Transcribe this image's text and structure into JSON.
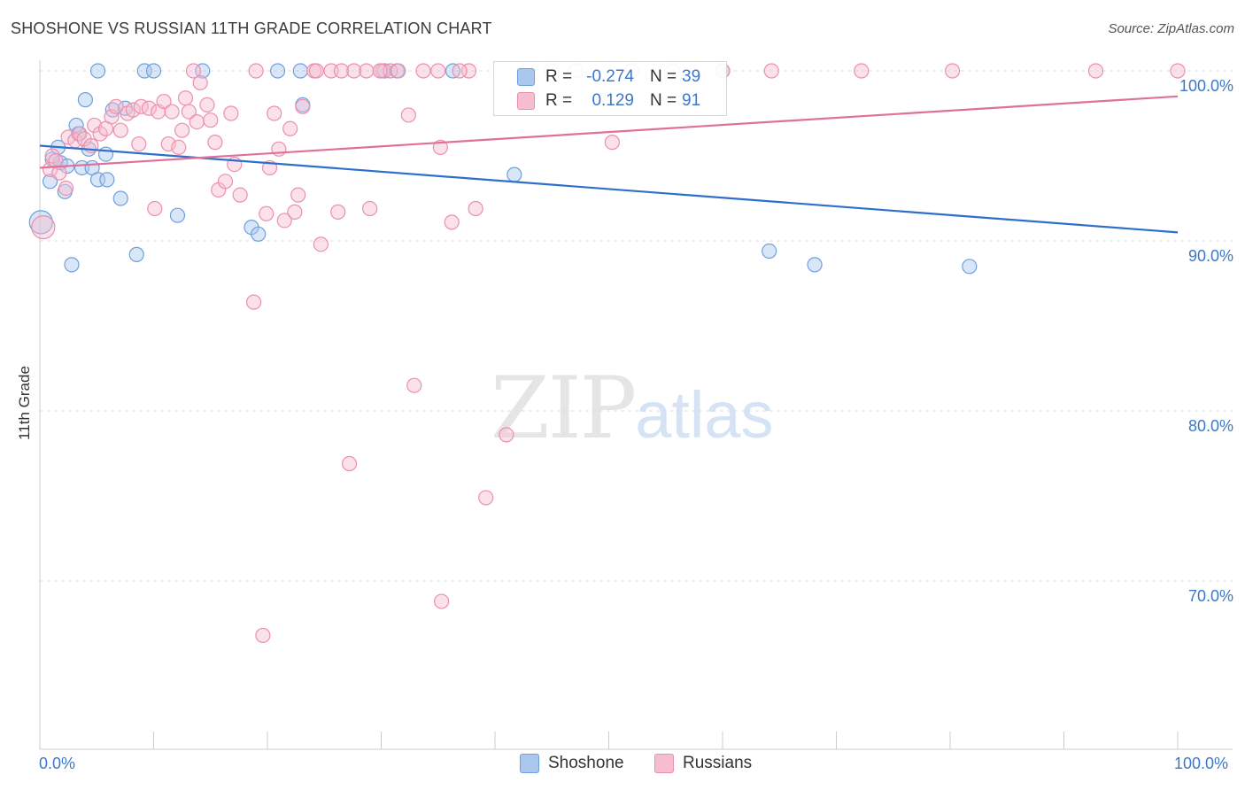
{
  "title": "SHOSHONE VS RUSSIAN 11TH GRADE CORRELATION CHART",
  "source": "Source: ZipAtlas.com",
  "watermark": {
    "zip": "ZIP",
    "atlas": "atlas"
  },
  "legend": [
    {
      "r_label": "R =",
      "r_value": "-0.274",
      "n_label": "N =",
      "n_value": "39"
    },
    {
      "r_label": "R =",
      "r_value": "0.129",
      "n_label": "N =",
      "n_value": "91"
    }
  ],
  "chart_data": {
    "type": "scatter",
    "title": "SHOSHONE VS RUSSIAN 11TH GRADE CORRELATION CHART",
    "xlabel": "",
    "ylabel": "11th Grade",
    "xlim": [
      0,
      100
    ],
    "ylim": [
      60,
      100
    ],
    "x_tick_labels": [
      "0.0%",
      "100.0%"
    ],
    "y_ticks": [
      {
        "value": 100,
        "label": "100.0%"
      },
      {
        "value": 90,
        "label": "90.0%"
      },
      {
        "value": 80,
        "label": "80.0%"
      },
      {
        "value": 70,
        "label": "70.0%"
      }
    ],
    "legend_position": "top-center",
    "grid": true,
    "series": [
      {
        "name": "Shoshone",
        "color": "#6fa0dc",
        "fill": "#aac8ee",
        "trend": {
          "x": [
            0,
            100
          ],
          "y": [
            95.6,
            90.5
          ],
          "color": "#2f6fcc"
        },
        "points": [
          [
            0.1,
            91.1
          ],
          [
            0.9,
            93.5
          ],
          [
            1.1,
            94.8
          ],
          [
            1.6,
            95.5
          ],
          [
            1.8,
            94.6
          ],
          [
            2.2,
            92.9
          ],
          [
            2.4,
            94.4
          ],
          [
            2.8,
            88.6
          ],
          [
            3.2,
            96.8
          ],
          [
            3.4,
            96.3
          ],
          [
            3.7,
            94.3
          ],
          [
            4.0,
            98.3
          ],
          [
            4.3,
            95.4
          ],
          [
            4.6,
            94.3
          ],
          [
            5.1,
            93.6
          ],
          [
            5.1,
            100.0
          ],
          [
            5.8,
            95.1
          ],
          [
            5.9,
            93.6
          ],
          [
            6.4,
            97.7
          ],
          [
            7.1,
            92.5
          ],
          [
            7.5,
            97.8
          ],
          [
            8.5,
            89.2
          ],
          [
            9.2,
            100.0
          ],
          [
            10.0,
            100.0
          ],
          [
            12.1,
            91.5
          ],
          [
            14.3,
            100.0
          ],
          [
            18.6,
            90.8
          ],
          [
            19.2,
            90.4
          ],
          [
            20.9,
            100.0
          ],
          [
            22.9,
            100.0
          ],
          [
            23.1,
            98.0
          ],
          [
            30.3,
            100.0
          ],
          [
            31.4,
            100.0
          ],
          [
            36.3,
            100.0
          ],
          [
            41.7,
            93.9
          ],
          [
            64.1,
            89.4
          ],
          [
            68.1,
            88.6
          ],
          [
            81.7,
            88.5
          ],
          [
            60.0,
            100.0
          ]
        ]
      },
      {
        "name": "Russians",
        "color": "#ec8fae",
        "fill": "#f6bccf",
        "trend": {
          "x": [
            0,
            100
          ],
          "y": [
            94.3,
            98.5
          ],
          "color": "#e0709b"
        },
        "points": [
          [
            0.3,
            90.8
          ],
          [
            0.9,
            94.2
          ],
          [
            1.1,
            95.0
          ],
          [
            1.4,
            94.7
          ],
          [
            1.7,
            94.0
          ],
          [
            2.3,
            93.1
          ],
          [
            2.5,
            96.1
          ],
          [
            3.1,
            95.9
          ],
          [
            3.5,
            96.3
          ],
          [
            3.9,
            96.0
          ],
          [
            4.5,
            95.6
          ],
          [
            4.8,
            96.8
          ],
          [
            5.3,
            96.3
          ],
          [
            5.8,
            96.6
          ],
          [
            6.3,
            97.3
          ],
          [
            6.7,
            97.9
          ],
          [
            7.1,
            96.5
          ],
          [
            7.7,
            97.5
          ],
          [
            8.2,
            97.7
          ],
          [
            8.7,
            95.7
          ],
          [
            8.9,
            97.9
          ],
          [
            9.6,
            97.8
          ],
          [
            10.1,
            91.9
          ],
          [
            10.4,
            97.6
          ],
          [
            10.9,
            98.2
          ],
          [
            11.3,
            95.7
          ],
          [
            11.6,
            97.6
          ],
          [
            12.2,
            95.5
          ],
          [
            12.5,
            96.5
          ],
          [
            12.8,
            98.4
          ],
          [
            13.1,
            97.6
          ],
          [
            13.8,
            97.0
          ],
          [
            14.1,
            99.3
          ],
          [
            14.7,
            98.0
          ],
          [
            15.0,
            97.1
          ],
          [
            15.4,
            95.8
          ],
          [
            15.7,
            93.0
          ],
          [
            16.3,
            93.5
          ],
          [
            16.8,
            97.5
          ],
          [
            17.1,
            94.5
          ],
          [
            17.6,
            92.7
          ],
          [
            18.8,
            86.4
          ],
          [
            19.6,
            66.8
          ],
          [
            19.9,
            91.6
          ],
          [
            20.2,
            94.3
          ],
          [
            20.6,
            97.5
          ],
          [
            21.0,
            95.4
          ],
          [
            21.5,
            91.2
          ],
          [
            22.0,
            96.6
          ],
          [
            22.4,
            91.7
          ],
          [
            22.7,
            92.7
          ],
          [
            23.1,
            97.9
          ],
          [
            24.1,
            100.0
          ],
          [
            24.7,
            89.8
          ],
          [
            25.6,
            100.0
          ],
          [
            26.2,
            91.7
          ],
          [
            27.2,
            76.9
          ],
          [
            27.6,
            100.0
          ],
          [
            28.7,
            100.0
          ],
          [
            29.0,
            91.9
          ],
          [
            30.1,
            100.0
          ],
          [
            30.8,
            100.0
          ],
          [
            31.5,
            100.0
          ],
          [
            32.4,
            97.4
          ],
          [
            32.9,
            81.5
          ],
          [
            33.7,
            100.0
          ],
          [
            35.0,
            100.0
          ],
          [
            35.2,
            95.5
          ],
          [
            35.3,
            68.8
          ],
          [
            36.2,
            91.1
          ],
          [
            37.7,
            100.0
          ],
          [
            38.3,
            91.9
          ],
          [
            39.2,
            74.9
          ],
          [
            41.0,
            78.6
          ],
          [
            45.0,
            100.0
          ],
          [
            47.1,
            100.0
          ],
          [
            50.3,
            95.8
          ],
          [
            52.0,
            100.0
          ],
          [
            55.6,
            100.0
          ],
          [
            60.0,
            100.0
          ],
          [
            64.3,
            100.0
          ],
          [
            72.2,
            100.0
          ],
          [
            80.2,
            100.0
          ],
          [
            92.8,
            100.0
          ],
          [
            100.0,
            100.0
          ],
          [
            13.5,
            100.0
          ],
          [
            19.0,
            100.0
          ],
          [
            24.3,
            100.0
          ],
          [
            26.5,
            100.0
          ],
          [
            29.9,
            100.0
          ],
          [
            36.9,
            100.0
          ]
        ]
      }
    ]
  }
}
